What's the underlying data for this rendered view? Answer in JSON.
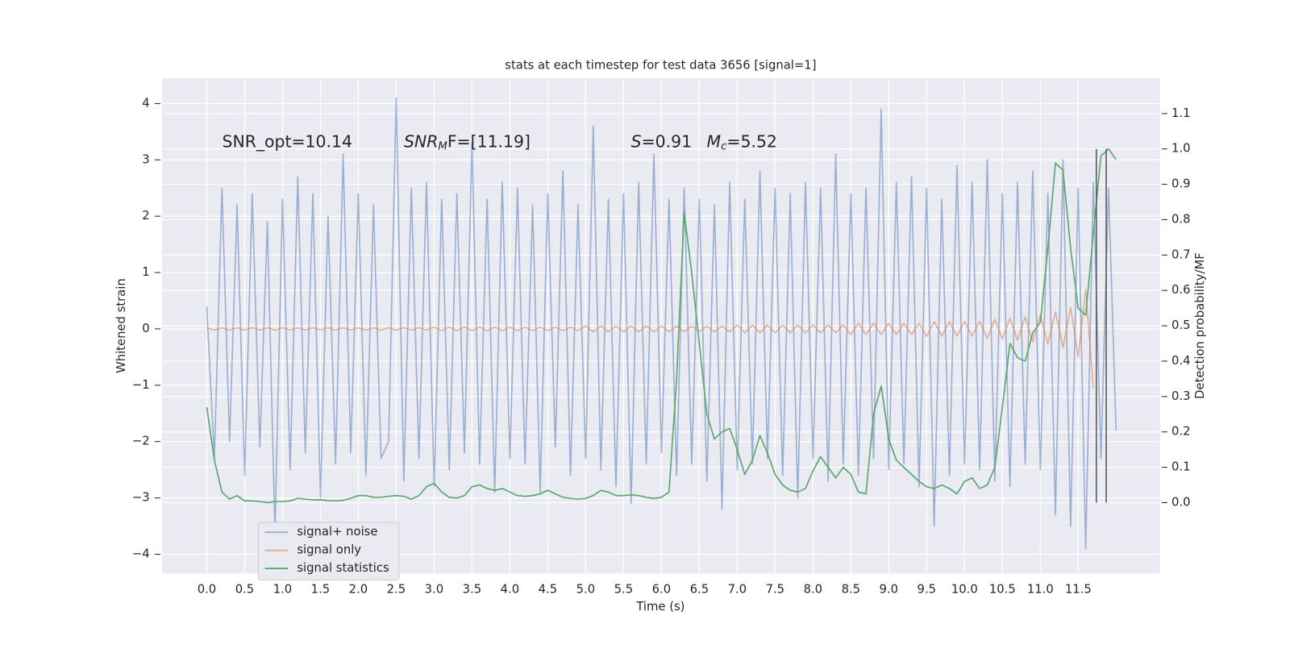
{
  "chart_data": {
    "type": "line",
    "title": "stats at each timestep for test data 3656 [signal=1]",
    "xlabel": "Time (s)",
    "ylabel": "Whitened strain",
    "y2label": "Detection probability/MF",
    "annotations": [
      {
        "rest": "SNR_opt=10.14"
      },
      {
        "main": "SNR",
        "sub": "M",
        "rest": "F=[11.19]"
      },
      {
        "main": "S",
        "rest": "=0.91"
      },
      {
        "main": "M",
        "sub": "c",
        "rest": "=5.52"
      }
    ],
    "x": [
      0.0,
      0.1,
      0.2,
      0.3,
      0.4,
      0.5,
      0.6,
      0.7,
      0.8,
      0.9,
      1.0,
      1.1,
      1.2,
      1.3,
      1.4,
      1.5,
      1.6,
      1.7,
      1.8,
      1.9,
      2.0,
      2.1,
      2.2,
      2.3,
      2.4,
      2.5,
      2.6,
      2.7,
      2.8,
      2.9,
      3.0,
      3.1,
      3.2,
      3.3,
      3.4,
      3.5,
      3.6,
      3.7,
      3.8,
      3.9,
      4.0,
      4.1,
      4.2,
      4.3,
      4.4,
      4.5,
      4.6,
      4.7,
      4.8,
      4.9,
      5.0,
      5.1,
      5.2,
      5.3,
      5.4,
      5.5,
      5.6,
      5.7,
      5.8,
      5.9,
      6.0,
      6.1,
      6.2,
      6.3,
      6.4,
      6.5,
      6.6,
      6.7,
      6.8,
      6.9,
      7.0,
      7.1,
      7.2,
      7.3,
      7.4,
      7.5,
      7.6,
      7.7,
      7.8,
      7.9,
      8.0,
      8.1,
      8.2,
      8.3,
      8.4,
      8.5,
      8.6,
      8.7,
      8.8,
      8.9,
      9.0,
      9.1,
      9.2,
      9.3,
      9.4,
      9.5,
      9.6,
      9.7,
      9.8,
      9.9,
      10.0,
      10.1,
      10.2,
      10.3,
      10.4,
      10.5,
      10.6,
      10.7,
      10.8,
      10.9,
      11.0,
      11.1,
      11.2,
      11.3,
      11.4,
      11.5,
      11.6,
      11.7,
      11.8,
      11.9,
      12.0
    ],
    "series": [
      {
        "name": "signal+ noise",
        "color": "#4c72b0",
        "alpha": 0.5,
        "values": [
          0.4,
          -2.3,
          2.5,
          -2.0,
          2.2,
          -2.6,
          2.4,
          -2.1,
          1.9,
          -3.6,
          2.3,
          -2.5,
          2.7,
          -2.2,
          2.4,
          -3.0,
          2.0,
          -2.4,
          3.1,
          -2.2,
          2.4,
          -2.6,
          2.2,
          -2.3,
          -2.0,
          4.1,
          -2.7,
          2.5,
          -2.3,
          2.6,
          -2.8,
          2.3,
          -2.5,
          2.4,
          -2.2,
          3.3,
          -2.4,
          2.3,
          -2.9,
          2.6,
          -2.3,
          2.5,
          -2.4,
          2.2,
          -2.9,
          2.4,
          -2.1,
          2.8,
          -2.6,
          2.2,
          -2.3,
          3.6,
          -2.5,
          2.3,
          -2.8,
          2.4,
          -3.1,
          2.6,
          -2.4,
          3.1,
          -2.2,
          2.3,
          -2.6,
          2.5,
          -2.4,
          2.3,
          -2.7,
          2.2,
          -3.2,
          2.6,
          -2.5,
          2.3,
          -2.4,
          2.8,
          -2.3,
          2.5,
          -2.6,
          2.4,
          -3.0,
          2.6,
          -2.3,
          2.5,
          -2.7,
          3.1,
          -2.4,
          2.4,
          -2.6,
          2.5,
          -2.3,
          3.9,
          -2.5,
          2.6,
          -2.4,
          2.7,
          -2.8,
          2.5,
          -3.5,
          2.3,
          -2.6,
          2.9,
          -2.4,
          2.6,
          -2.5,
          3.0,
          -2.7,
          2.4,
          -2.8,
          2.6,
          -2.4,
          2.8,
          -2.5,
          2.4,
          -3.3,
          3.0,
          -3.5,
          2.5,
          -3.9,
          2.6,
          -2.3,
          2.5,
          -1.8
        ]
      },
      {
        "name": "signal only",
        "color": "#dd8452",
        "alpha": 0.6,
        "values": [
          0.02,
          -0.02,
          0.02,
          -0.02,
          0.02,
          -0.02,
          0.02,
          -0.02,
          0.02,
          -0.02,
          0.02,
          -0.02,
          0.02,
          -0.02,
          0.02,
          -0.02,
          0.02,
          -0.02,
          0.02,
          -0.02,
          0.02,
          -0.02,
          0.02,
          -0.02,
          0.02,
          -0.02,
          0.02,
          -0.02,
          0.02,
          -0.02,
          0.03,
          -0.03,
          0.03,
          -0.03,
          0.03,
          -0.03,
          0.03,
          -0.03,
          0.03,
          -0.03,
          0.03,
          -0.03,
          0.03,
          -0.03,
          0.03,
          -0.03,
          0.03,
          -0.03,
          0.03,
          -0.03,
          0.05,
          -0.05,
          0.05,
          -0.05,
          0.05,
          -0.05,
          0.05,
          -0.05,
          0.05,
          -0.05,
          0.05,
          -0.05,
          0.05,
          -0.05,
          0.05,
          -0.05,
          0.05,
          -0.05,
          0.05,
          -0.05,
          0.07,
          -0.07,
          0.07,
          -0.07,
          0.07,
          -0.07,
          0.07,
          -0.07,
          0.07,
          -0.07,
          0.07,
          -0.07,
          0.07,
          -0.07,
          0.07,
          -0.1,
          0.1,
          -0.1,
          0.1,
          -0.1,
          0.1,
          -0.1,
          0.1,
          -0.1,
          0.1,
          -0.13,
          0.13,
          -0.13,
          0.13,
          -0.13,
          0.13,
          -0.13,
          0.13,
          -0.17,
          0.17,
          -0.18,
          0.19,
          -0.2,
          0.21,
          -0.23,
          0.25,
          -0.27,
          0.3,
          -0.33,
          0.38,
          -0.5,
          0.7,
          -1.05,
          null,
          null,
          null
        ]
      },
      {
        "name": "signal statistics",
        "color": "#55a868",
        "alpha": 1,
        "axis": "y2",
        "values": [
          0.27,
          0.12,
          0.03,
          0.01,
          0.02,
          0.005,
          0.005,
          0.003,
          0.0,
          0.003,
          0.003,
          0.005,
          0.012,
          0.01,
          0.008,
          0.008,
          0.006,
          0.005,
          0.007,
          0.012,
          0.02,
          0.02,
          0.015,
          0.015,
          0.018,
          0.02,
          0.018,
          0.01,
          0.02,
          0.045,
          0.055,
          0.03,
          0.015,
          0.013,
          0.02,
          0.045,
          0.05,
          0.04,
          0.035,
          0.04,
          0.03,
          0.02,
          0.018,
          0.02,
          0.025,
          0.035,
          0.025,
          0.015,
          0.012,
          0.01,
          0.012,
          0.02,
          0.035,
          0.03,
          0.02,
          0.02,
          0.022,
          0.02,
          0.015,
          0.012,
          0.015,
          0.03,
          0.35,
          0.82,
          0.65,
          0.45,
          0.25,
          0.18,
          0.2,
          0.21,
          0.15,
          0.08,
          0.12,
          0.19,
          0.14,
          0.08,
          0.05,
          0.035,
          0.03,
          0.04,
          0.09,
          0.13,
          0.1,
          0.07,
          0.1,
          0.08,
          0.03,
          0.025,
          0.25,
          0.33,
          0.18,
          0.12,
          0.1,
          0.08,
          0.06,
          0.045,
          0.04,
          0.05,
          0.04,
          0.025,
          0.06,
          0.07,
          0.04,
          0.05,
          0.1,
          0.27,
          0.45,
          0.41,
          0.4,
          0.48,
          0.51,
          0.72,
          0.96,
          0.94,
          0.72,
          0.55,
          0.53,
          0.76,
          0.98,
          1.0,
          0.97
        ]
      }
    ],
    "vlines": {
      "x": [
        11.74,
        11.87
      ],
      "ymin": 0,
      "ymax": 1,
      "axis": "y2",
      "color": "#555555"
    },
    "xlim": [
      -0.59,
      12.58
    ],
    "ylim": [
      -4.34,
      4.45
    ],
    "y2lim": [
      -0.2,
      1.2
    ],
    "xticks": [
      {
        "value": 0,
        "label": "0.0"
      },
      0.5,
      {
        "value": 1,
        "label": "1.0"
      },
      1.5,
      {
        "value": 2,
        "label": "2.0"
      },
      2.5,
      {
        "value": 3,
        "label": "3.0"
      },
      3.5,
      {
        "value": 4,
        "label": "4.0"
      },
      4.5,
      {
        "value": 5,
        "label": "5.0"
      },
      5.5,
      {
        "value": 6,
        "label": "6.0"
      },
      6.5,
      {
        "value": 7,
        "label": "7.0"
      },
      7.5,
      {
        "value": 8,
        "label": "8.0"
      },
      8.5,
      {
        "value": 9,
        "label": "9.0"
      },
      9.5,
      {
        "value": 10,
        "label": "10.0"
      },
      10.5,
      {
        "value": 11,
        "label": "11.0"
      },
      11.5
    ],
    "yticks": [
      {
        "value": -4,
        "label": "−4"
      },
      {
        "value": -3,
        "label": "−3"
      },
      {
        "value": -2,
        "label": "−2"
      },
      {
        "value": -1,
        "label": "−1"
      },
      0,
      1,
      2,
      3,
      4
    ],
    "y2ticks": [
      {
        "value": 0,
        "label": "0.0"
      },
      0.1,
      0.2,
      0.3,
      0.4,
      0.5,
      0.6,
      0.7,
      0.8,
      0.9,
      {
        "value": 1,
        "label": "1.0"
      },
      1.1
    ],
    "grid": true,
    "legend": "lower left"
  }
}
